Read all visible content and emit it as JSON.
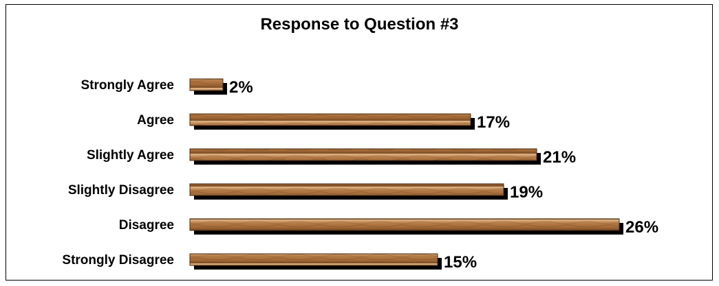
{
  "chart_data": {
    "type": "bar",
    "orientation": "horizontal",
    "title": "Response to Question #3",
    "categories": [
      "Strongly Agree",
      "Agree",
      "Slightly Agree",
      "Slightly Disagree",
      "Disagree",
      "Strongly Disagree"
    ],
    "values": [
      2,
      17,
      21,
      19,
      26,
      15
    ],
    "value_labels": [
      "2%",
      "17%",
      "21%",
      "19%",
      "26%",
      "15%"
    ],
    "unit": "%",
    "grid": false,
    "legend": "none",
    "colors": {
      "bar": "#b47a45",
      "bar_dark": "#7a4a22",
      "bar_light": "#d9a878",
      "shadow": "#000000"
    }
  }
}
